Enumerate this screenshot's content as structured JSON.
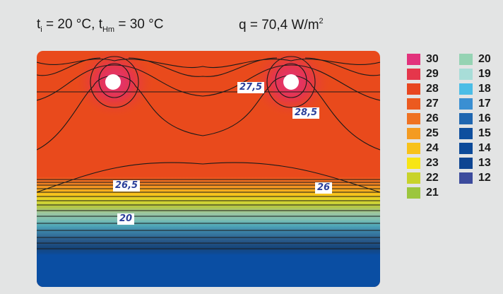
{
  "header": {
    "t_i_label": "t",
    "t_i_sub": "i",
    "t_i_value": " = 20 °C, ",
    "t_hm_label": "t",
    "t_hm_sub": "Hm",
    "t_hm_value": " = 30 °C",
    "flux_text": "q = 70,4 W/m",
    "flux_sup": "2"
  },
  "contour_labels": [
    "27,5",
    "28,5",
    "26,5",
    "26",
    "20"
  ],
  "colors": {
    "background": "#e3e4e4",
    "plot_main": "#e94a1c",
    "plot_bottom": "#0a4ea3"
  },
  "legend": {
    "left": [
      {
        "value": "30",
        "color": "#e2327c"
      },
      {
        "value": "29",
        "color": "#e5364b"
      },
      {
        "value": "28",
        "color": "#e8461f"
      },
      {
        "value": "27",
        "color": "#ec5a1f"
      },
      {
        "value": "26",
        "color": "#ef7222"
      },
      {
        "value": "25",
        "color": "#f49b21"
      },
      {
        "value": "24",
        "color": "#f8c21a"
      },
      {
        "value": "23",
        "color": "#f7e514"
      },
      {
        "value": "22",
        "color": "#c8d32a"
      },
      {
        "value": "21",
        "color": "#9cc63d"
      }
    ],
    "right": [
      {
        "value": "20",
        "color": "#95d3b3"
      },
      {
        "value": "19",
        "color": "#a8ddd8"
      },
      {
        "value": "18",
        "color": "#4bbde6"
      },
      {
        "value": "17",
        "color": "#3a8fd2"
      },
      {
        "value": "16",
        "color": "#1f66b0"
      },
      {
        "value": "15",
        "color": "#0f4f9e"
      },
      {
        "value": "14",
        "color": "#0c4a99"
      },
      {
        "value": "13",
        "color": "#0e4592"
      },
      {
        "value": "12",
        "color": "#3c4b9d"
      }
    ]
  }
}
